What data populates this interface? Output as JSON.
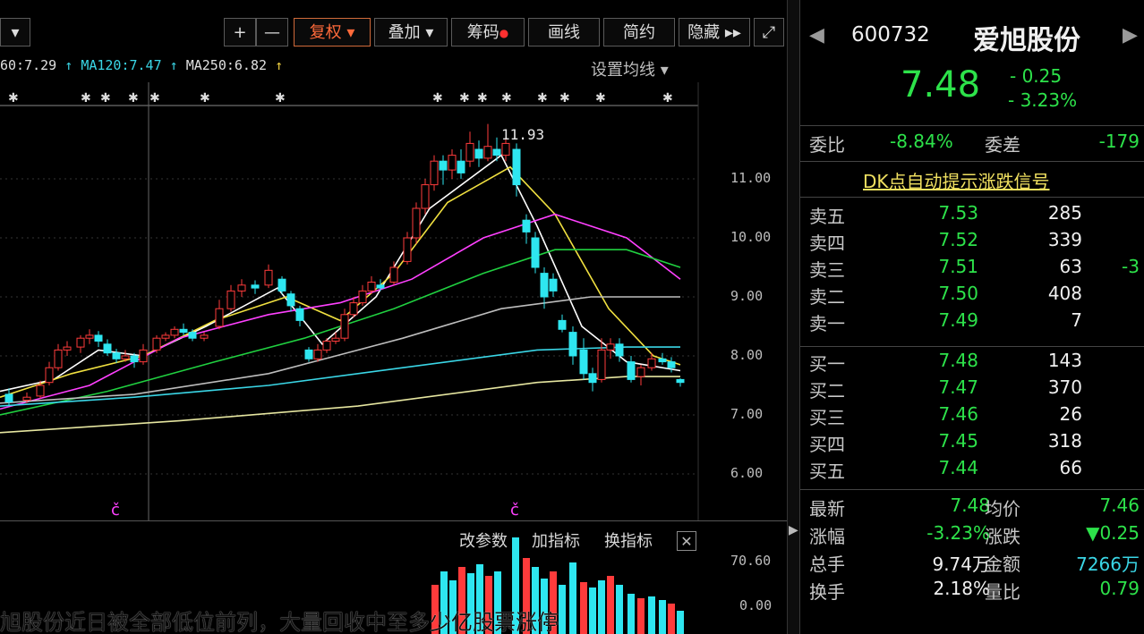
{
  "toolbar": {
    "dropdown_arrow": "▾",
    "plus": "+",
    "minus": "—",
    "restore_rights": "复权",
    "overlay": "叠加",
    "chips": "筹码",
    "draw_line": "画线",
    "simple": "简约",
    "hide": "隐藏",
    "more_icon": "▸▸",
    "expand_icon": "⤢"
  },
  "ma_line": {
    "ma60": "60:7.29",
    "ma120": "MA120:7.47",
    "ma250": "MA250:6.82",
    "arrow": "↑",
    "settings": "设置均线"
  },
  "price_axis": [
    "11.00",
    "10.00",
    "9.00",
    "8.00",
    "7.00",
    "6.00"
  ],
  "high_label": "11.93",
  "markers": [
    "č",
    "č"
  ],
  "volume_panel": {
    "change_params": "改参数",
    "add_indicator": "加指标",
    "switch_indicator": "换指标",
    "close": "✕",
    "axis": [
      "70.60",
      "0.00"
    ]
  },
  "quote": {
    "code": "600732",
    "name": "爱旭股份",
    "price": "7.48",
    "change": "- 0.25",
    "change_pct": "- 3.23%",
    "ratio_label": "委比",
    "ratio_value": "-8.84%",
    "diff_label": "委差",
    "diff_value": "-179",
    "dk_signal": "DK点自动提示涨跌信号",
    "asks": [
      {
        "label": "卖五",
        "price": "7.53",
        "volume": "285",
        "extra": ""
      },
      {
        "label": "卖四",
        "price": "7.52",
        "volume": "339",
        "extra": ""
      },
      {
        "label": "卖三",
        "price": "7.51",
        "volume": "63",
        "extra": "-3"
      },
      {
        "label": "卖二",
        "price": "7.50",
        "volume": "408",
        "extra": ""
      },
      {
        "label": "卖一",
        "price": "7.49",
        "volume": "7",
        "extra": ""
      }
    ],
    "bids": [
      {
        "label": "买一",
        "price": "7.48",
        "volume": "143"
      },
      {
        "label": "买二",
        "price": "7.47",
        "volume": "370"
      },
      {
        "label": "买三",
        "price": "7.46",
        "volume": "26"
      },
      {
        "label": "买四",
        "price": "7.45",
        "volume": "318"
      },
      {
        "label": "买五",
        "price": "7.44",
        "volume": "66"
      }
    ],
    "stats": [
      {
        "l1": "最新",
        "v1": "7.48",
        "l2": "均价",
        "v2": "7.46"
      },
      {
        "l1": "涨幅",
        "v1": "-3.23%",
        "l2": "涨跌",
        "v2": "▼0.25"
      },
      {
        "l1": "总手",
        "v1": "9.74万",
        "l2": "金额",
        "v2": "7266万"
      },
      {
        "l1": "换手",
        "v1": "2.18%",
        "l2": "量比",
        "v2": "0.79"
      }
    ]
  },
  "caption": "旭股份近日被全部低位前列，大量回收中至多少亿股票涨停"
}
